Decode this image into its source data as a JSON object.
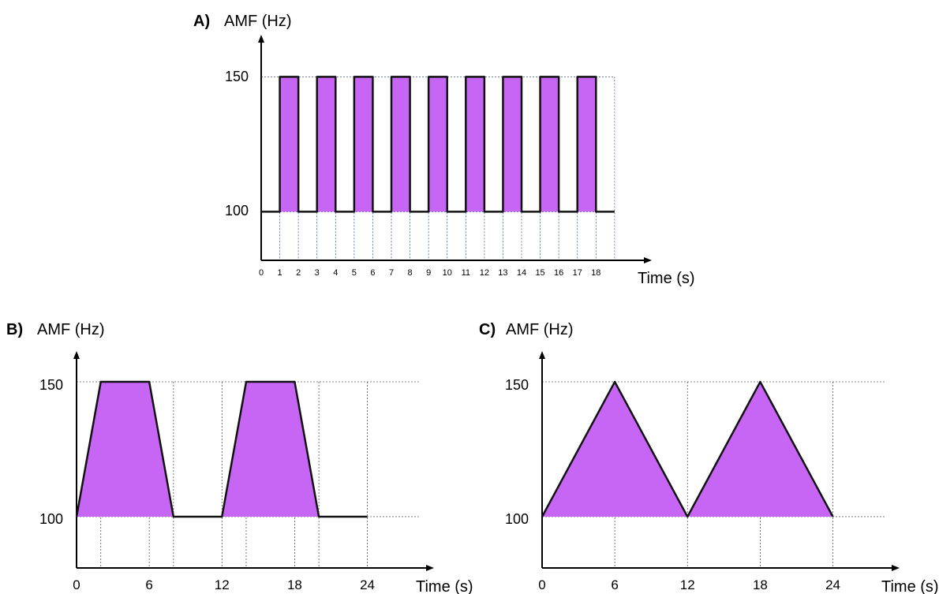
{
  "chart_data": [
    {
      "panel": "A)",
      "type": "line",
      "ylabel": "AMF (Hz)",
      "xlabel": "Time (s)",
      "yticks": [
        "150",
        "100"
      ],
      "xticks": [
        "0",
        "1",
        "2",
        "3",
        "4",
        "5",
        "6",
        "7",
        "8",
        "9",
        "10",
        "11",
        "12",
        "13",
        "14",
        "15",
        "16",
        "17",
        "18"
      ],
      "x": [
        0,
        1,
        1,
        2,
        2,
        3,
        3,
        4,
        4,
        5,
        5,
        6,
        6,
        7,
        7,
        8,
        8,
        9,
        9,
        10,
        10,
        11,
        11,
        12,
        12,
        13,
        13,
        14,
        14,
        15,
        15,
        16,
        16,
        17,
        17,
        18,
        18,
        19
      ],
      "y": [
        100,
        100,
        150,
        150,
        100,
        100,
        150,
        150,
        100,
        100,
        150,
        150,
        100,
        100,
        150,
        150,
        100,
        100,
        150,
        150,
        100,
        100,
        150,
        150,
        100,
        100,
        150,
        150,
        100,
        100,
        150,
        150,
        100,
        100,
        150,
        150,
        100,
        100
      ],
      "xlim": [
        0,
        21
      ],
      "ylim": [
        82,
        170
      ],
      "fill_color": "#c766f5",
      "grid": true
    },
    {
      "panel": "B)",
      "type": "area",
      "ylabel": "AMF (Hz)",
      "xlabel": "Time (s)",
      "yticks": [
        "150",
        "100"
      ],
      "xticks": [
        "0",
        "6",
        "12",
        "18",
        "24"
      ],
      "x": [
        0,
        2,
        6,
        8,
        12,
        14,
        18,
        20,
        24
      ],
      "y": [
        100,
        150,
        150,
        100,
        100,
        150,
        150,
        100,
        100
      ],
      "xlim": [
        0,
        29.5
      ],
      "ylim": [
        81,
        162
      ],
      "fill_color": "#c766f5",
      "grid": true
    },
    {
      "panel": "C)",
      "type": "area",
      "ylabel": "AMF (Hz)",
      "xlabel": "Time (s)",
      "yticks": [
        "150",
        "100"
      ],
      "xticks": [
        "0",
        "6",
        "12",
        "18",
        "24"
      ],
      "x": [
        0,
        6,
        12,
        18,
        24
      ],
      "y": [
        100,
        150,
        100,
        150,
        100
      ],
      "xlim": [
        0,
        29.5
      ],
      "ylim": [
        81,
        162
      ],
      "fill_color": "#c766f5",
      "grid": true
    }
  ]
}
